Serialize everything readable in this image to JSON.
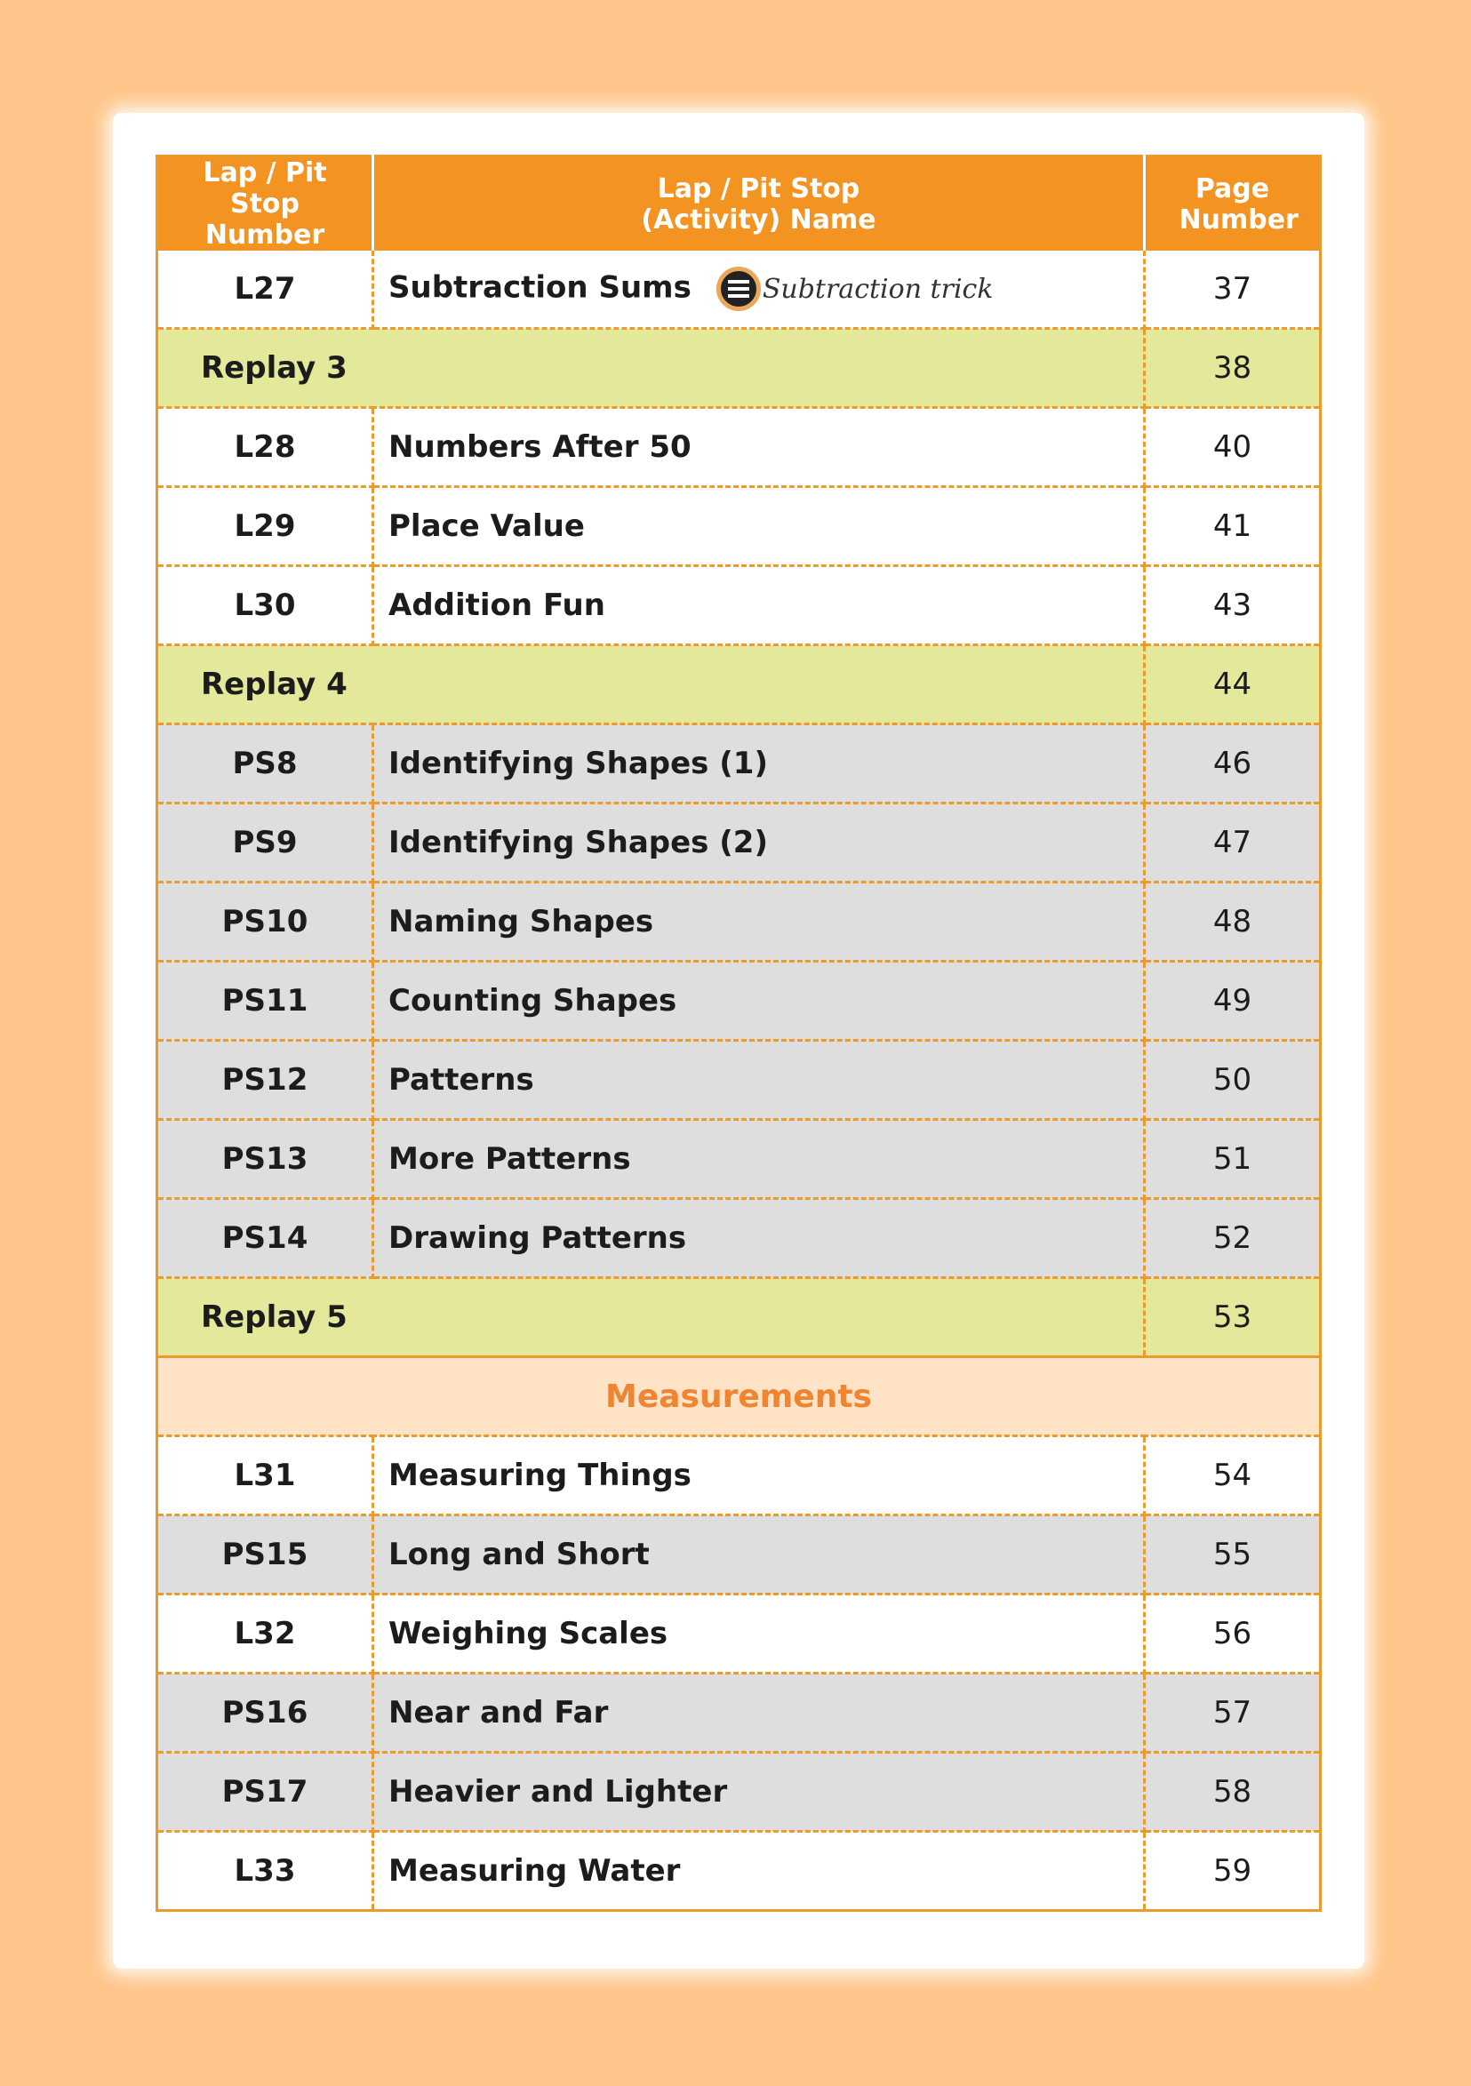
{
  "header": {
    "col1": "Lap / Pit Stop Number",
    "col2": "Lap / Pit Stop (Activity) Name",
    "col3": "Page Number"
  },
  "first_row": {
    "num": "L27",
    "name": "Subtraction Sums",
    "tag_icon": "abacus-icon",
    "tag": "Subtraction trick",
    "page": "37"
  },
  "replay3": {
    "label": "Replay 3",
    "page": "38"
  },
  "group1": [
    {
      "num": "L28",
      "name": "Numbers After 50",
      "page": "40"
    },
    {
      "num": "L29",
      "name": "Place Value",
      "page": "41"
    },
    {
      "num": "L30",
      "name": "Addition Fun",
      "page": "43"
    }
  ],
  "replay4": {
    "label": "Replay 4",
    "page": "44"
  },
  "group2": [
    {
      "num": "PS8",
      "name": "Identifying Shapes (1)",
      "page": "46"
    },
    {
      "num": "PS9",
      "name": "Identifying Shapes (2)",
      "page": "47"
    },
    {
      "num": "PS10",
      "name": "Naming Shapes",
      "page": "48"
    },
    {
      "num": "PS11",
      "name": "Counting Shapes",
      "page": "49"
    },
    {
      "num": "PS12",
      "name": "Patterns",
      "page": "50"
    },
    {
      "num": "PS13",
      "name": "More Patterns",
      "page": "51"
    },
    {
      "num": "PS14",
      "name": "Drawing Patterns",
      "page": "52"
    }
  ],
  "replay5": {
    "label": "Replay 5",
    "page": "53"
  },
  "section": "Measurements",
  "group3": [
    {
      "num": "L31",
      "name": "Measuring Things",
      "page": "54",
      "style": "white"
    },
    {
      "num": "PS15",
      "name": "Long and Short",
      "page": "55",
      "style": "gray"
    },
    {
      "num": "L32",
      "name": "Weighing Scales",
      "page": "56",
      "style": "white"
    },
    {
      "num": "PS16",
      "name": "Near and Far",
      "page": "57",
      "style": "gray"
    },
    {
      "num": "PS17",
      "name": "Heavier and Lighter",
      "page": "58",
      "style": "gray"
    },
    {
      "num": "L33",
      "name": "Measuring Water",
      "page": "59",
      "style": "white"
    }
  ],
  "colors": {
    "background": "#FFC68C",
    "header": "#F39321",
    "replay": "#E3E89A",
    "pit_stop": "#DEDEDE",
    "section": "#FEE3C6",
    "section_text": "#F08431",
    "border": "#EB9A2E"
  }
}
